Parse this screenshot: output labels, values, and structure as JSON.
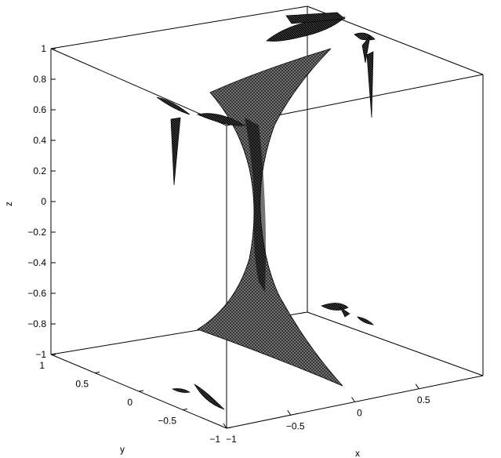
{
  "chart_data": {
    "type": "surface",
    "title": "",
    "xlabel": "x",
    "ylabel": "y",
    "zlabel": "z",
    "xlim": [
      -1,
      1
    ],
    "ylim": [
      -1,
      1
    ],
    "zlim": [
      -1,
      1
    ],
    "x_ticks": [
      "−1",
      "−0.5",
      "0",
      "0.5"
    ],
    "y_ticks": [
      "1",
      "0.5",
      "0",
      "−0.5",
      "−1"
    ],
    "z_ticks": [
      "1",
      "0.8",
      "0.6",
      "0.4",
      "0.2",
      "0",
      "−0.2",
      "−0.4",
      "−0.6",
      "−0.8",
      "−1"
    ],
    "surface": {
      "name": "hyperboloid sheet (meshed surface)",
      "color": "#000000",
      "mesh": "dense triangular wireframe"
    },
    "projections": [
      {
        "plane": "z=1 (top face)",
        "description": "projected fragments near top"
      },
      {
        "plane": "back walls",
        "description": "thin spike fragments"
      },
      {
        "plane": "z=-1 (bottom face)",
        "description": "small fragments near bottom"
      }
    ],
    "grid": false,
    "box": true
  }
}
